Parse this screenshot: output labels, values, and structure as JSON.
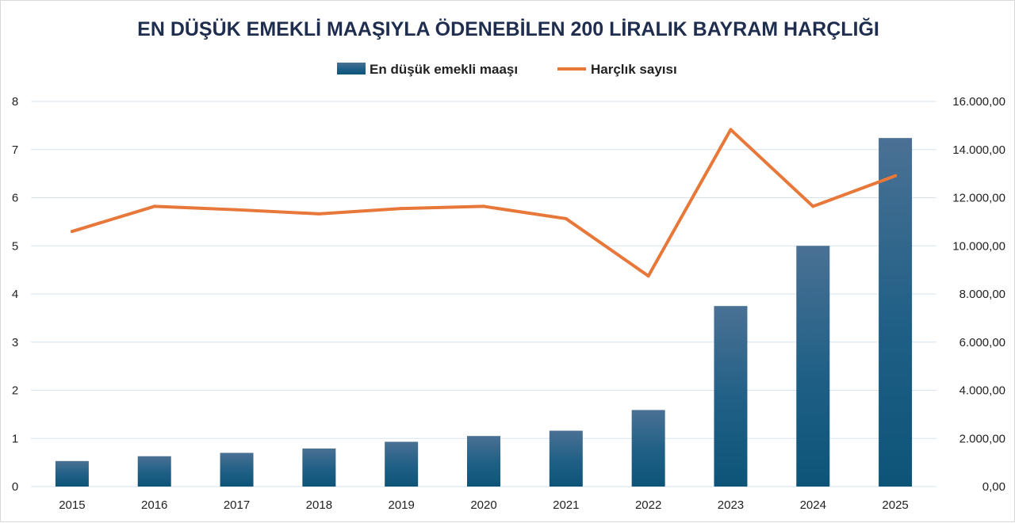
{
  "chart_data": {
    "type": "bar",
    "title": "EN DÜŞÜK EMEKLİ MAAŞIYLA ÖDENEBİLEN 200 LİRALIK BAYRAM HARÇLIĞI",
    "categories": [
      "2015",
      "2016",
      "2017",
      "2018",
      "2019",
      "2020",
      "2021",
      "2022",
      "2023",
      "2024",
      "2025"
    ],
    "series": [
      {
        "name": "En düşük emekli maaşı",
        "type": "bar",
        "axis": "left",
        "color": "#1b5a80",
        "values": [
          0.53,
          0.63,
          0.7,
          0.79,
          0.93,
          1.05,
          1.16,
          1.59,
          3.75,
          5.0,
          7.24
        ]
      },
      {
        "name": "Harçlık sayısı",
        "type": "line",
        "axis": "right",
        "color": "#e8773a",
        "values": [
          10600,
          11640,
          11500,
          11330,
          11550,
          11640,
          11130,
          8750,
          14830,
          11640,
          12910
        ]
      }
    ],
    "left_axis": {
      "min": 0,
      "max": 8,
      "ticks": [
        "0",
        "1",
        "2",
        "3",
        "4",
        "5",
        "6",
        "7",
        "8"
      ]
    },
    "right_axis": {
      "min": 0,
      "max": 16000,
      "ticks": [
        "0,00",
        "2.000,00",
        "4.000,00",
        "6.000,00",
        "8.000,00",
        "10.000,00",
        "12.000,00",
        "14.000,00",
        "16.000,00"
      ]
    },
    "grid": true,
    "legend_position": "top-center"
  }
}
